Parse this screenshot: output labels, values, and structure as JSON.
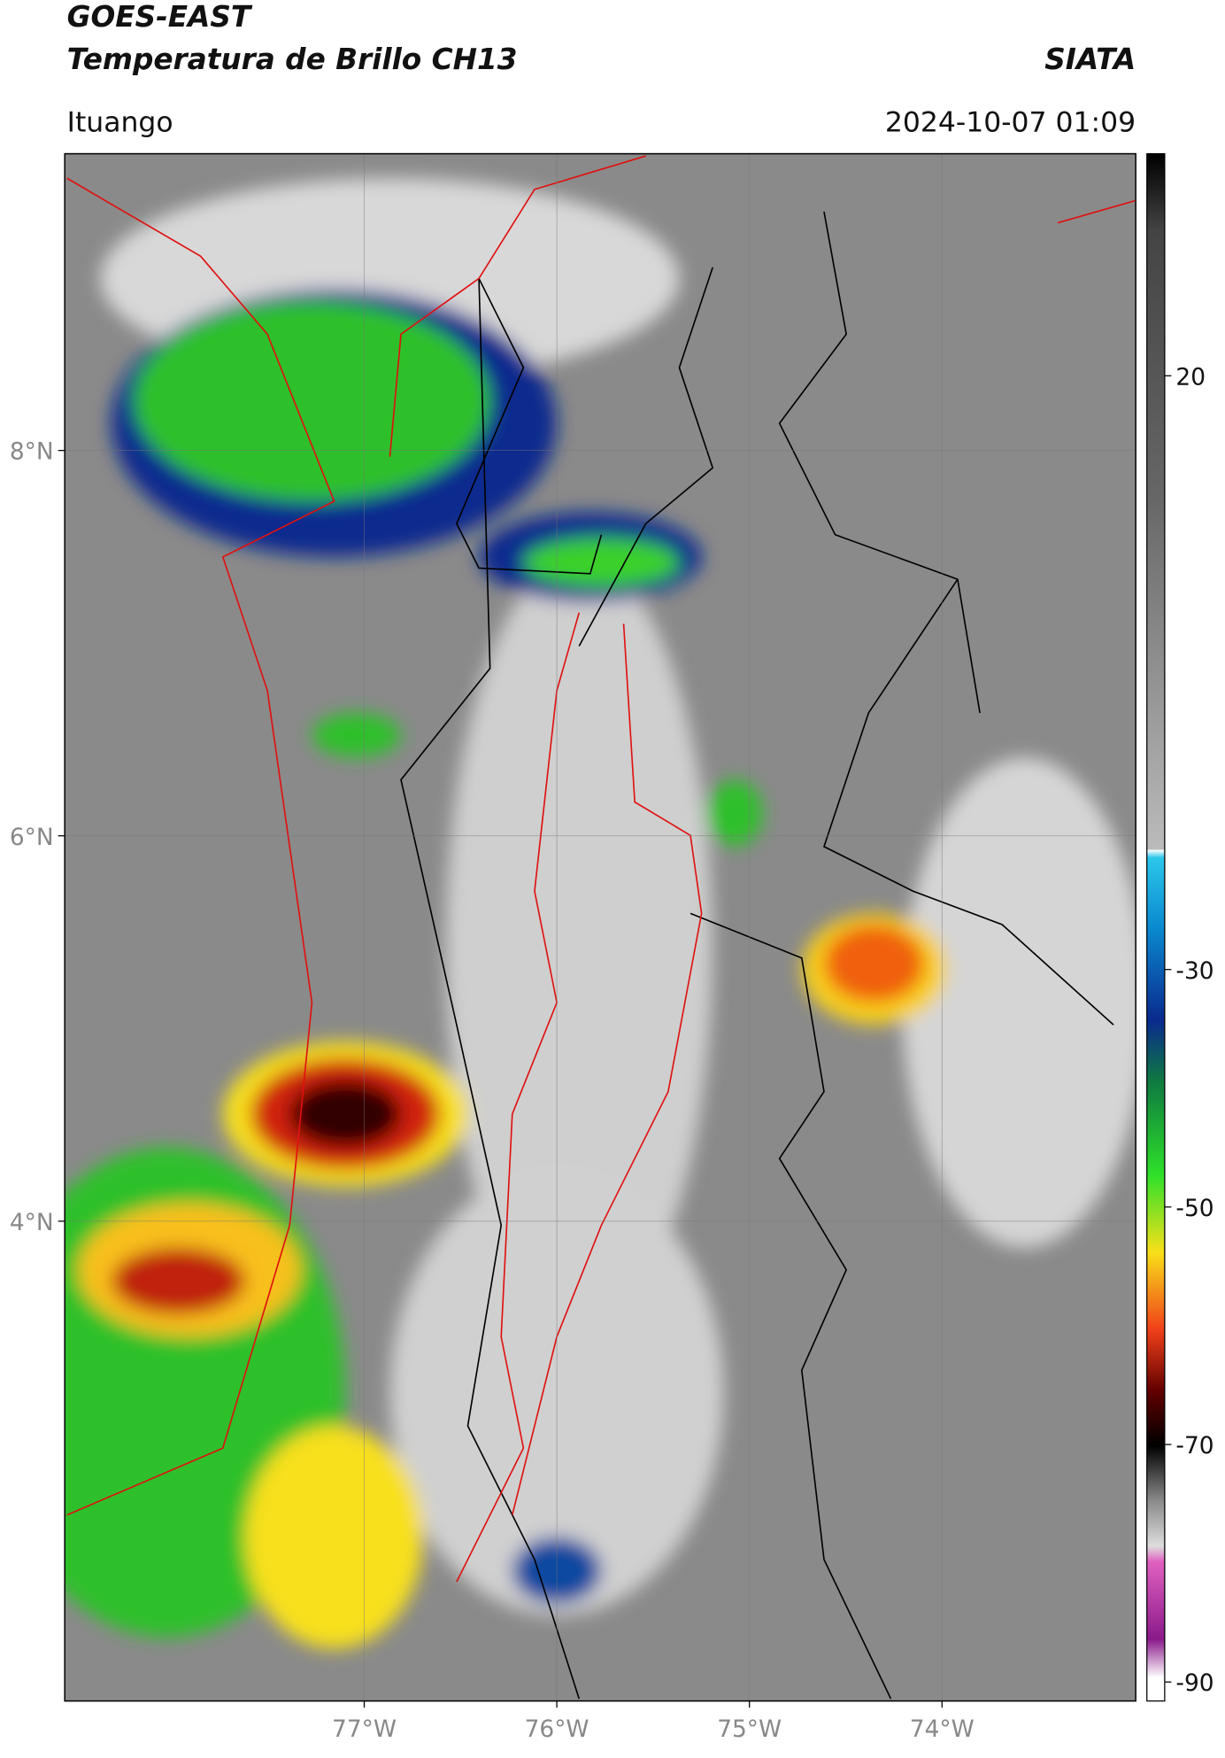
{
  "header": {
    "title": "GOES-EAST",
    "subtitle": "Temperatura de Brillo CH13",
    "source": "SIATA",
    "location": "Ituango",
    "datetime": "2024-10-07 01:09"
  },
  "map": {
    "xlim": [
      -78.555,
      -72.994
    ],
    "ylim": [
      1.51,
      9.54
    ],
    "xticks": [
      {
        "value": -77,
        "label": "77°W"
      },
      {
        "value": -76,
        "label": "76°W"
      },
      {
        "value": -75,
        "label": "75°W"
      },
      {
        "value": -74,
        "label": "74°W"
      }
    ],
    "yticks": [
      {
        "value": 8,
        "label": "8°N"
      },
      {
        "value": 6,
        "label": "6°N"
      },
      {
        "value": 4,
        "label": "4°N"
      }
    ],
    "grid": true
  },
  "colorbar": {
    "lim": [
      -91.6,
      38.7
    ],
    "ticks": [
      20,
      -30,
      -50,
      -70,
      -90
    ]
  }
}
